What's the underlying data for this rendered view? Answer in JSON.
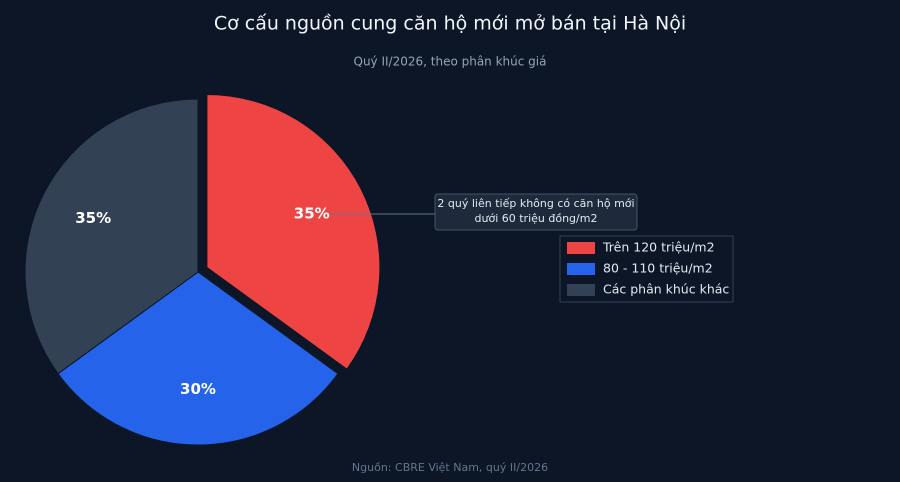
{
  "chart_data": {
    "type": "pie",
    "title": "Cơ cấu nguồn cung căn hộ mới mở bán tại Hà Nội",
    "subtitle": "Quý II/2026, theo phân khúc giá",
    "source": "Nguồn: CBRE Việt Nam, quý II/2026",
    "categories": [
      "Trên 120 triệu/m2",
      "80 - 110 triệu/m2",
      "Các phân khúc khác"
    ],
    "values": [
      35,
      30,
      35
    ],
    "value_labels": [
      "35%",
      "30%",
      "35%"
    ],
    "colors": [
      "#ef4444",
      "#2563eb",
      "#334155"
    ],
    "exploded": [
      true,
      false,
      false
    ],
    "annotation": {
      "lines": [
        "2 quý liên tiếp không có căn hộ mới",
        "dưới 60 triệu đồng/m2"
      ],
      "target": 0
    },
    "legend": "right"
  }
}
